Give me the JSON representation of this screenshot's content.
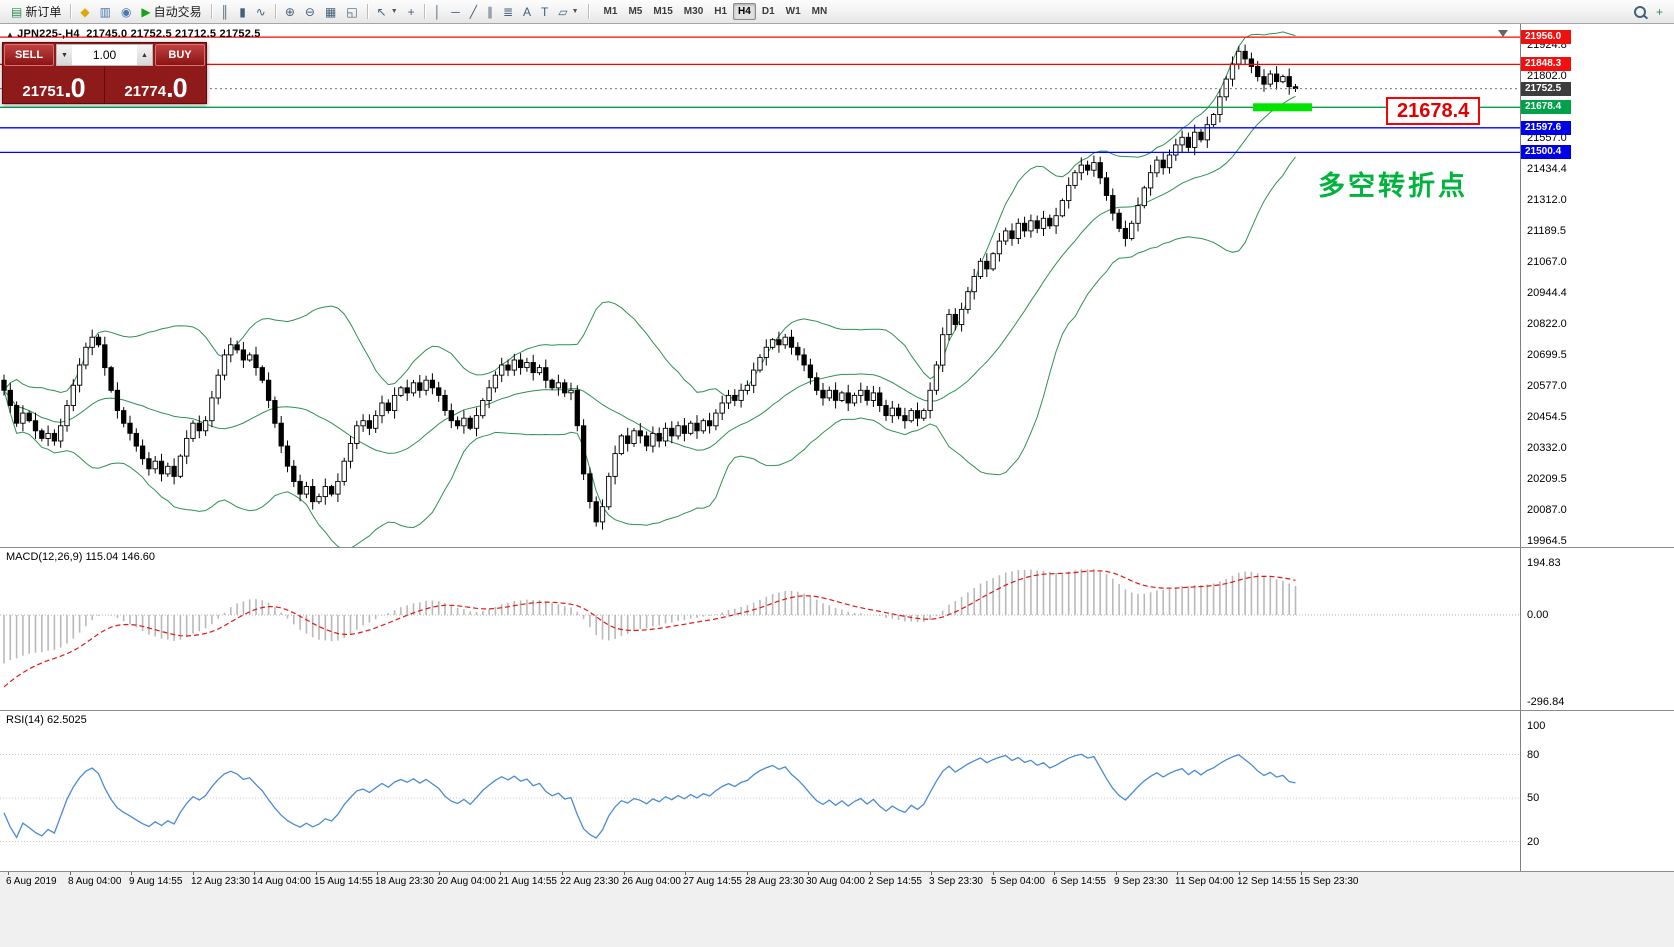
{
  "toolbar": {
    "items": [
      {
        "t": "btn",
        "name": "new-order-button",
        "glyph": "▤",
        "gc": "#2f8f4f",
        "label": "新订单"
      },
      {
        "t": "sep"
      },
      {
        "t": "ico",
        "name": "favorites-icon",
        "glyph": "◆",
        "gc": "#e0a700"
      },
      {
        "t": "ico",
        "name": "charts-window-icon",
        "glyph": "▥",
        "gc": "#4a78b0"
      },
      {
        "t": "ico",
        "name": "history-center-icon",
        "glyph": "◉",
        "gc": "#4a78b0"
      },
      {
        "t": "btn",
        "name": "auto-trading-button",
        "glyph": "▶",
        "gc": "#17a317",
        "label": "自动交易"
      },
      {
        "t": "sep"
      },
      {
        "t": "ico",
        "name": "bar-chart-icon",
        "glyph": "║"
      },
      {
        "t": "ico",
        "name": "candlestick-chart-icon",
        "glyph": "▮"
      },
      {
        "t": "ico",
        "name": "line-chart-icon",
        "glyph": "∿"
      },
      {
        "t": "sep"
      },
      {
        "t": "ico",
        "name": "zoom-in-icon",
        "glyph": "⊕"
      },
      {
        "t": "ico",
        "name": "zoom-out-icon",
        "glyph": "⊖"
      },
      {
        "t": "ico",
        "name": "grid-icon",
        "glyph": "▦"
      },
      {
        "t": "ico",
        "name": "tile-windows-icon",
        "glyph": "◱"
      },
      {
        "t": "sep"
      },
      {
        "t": "ico",
        "name": "cursor-icon",
        "glyph": "↖",
        "dd": true
      },
      {
        "t": "ico",
        "name": "crosshair-icon",
        "glyph": "+"
      },
      {
        "t": "sep"
      },
      {
        "t": "ico",
        "name": "vertical-line-icon",
        "glyph": "│"
      },
      {
        "t": "ico",
        "name": "horizontal-line-icon",
        "glyph": "─"
      },
      {
        "t": "ico",
        "name": "trendline-icon",
        "glyph": "╱"
      },
      {
        "t": "ico",
        "name": "equidistant-channel-icon",
        "glyph": "∥"
      },
      {
        "t": "ico",
        "name": "fibonacci-icon",
        "glyph": "≣"
      },
      {
        "t": "ico",
        "name": "text-icon",
        "glyph": "A"
      },
      {
        "t": "ico",
        "name": "text-label-icon",
        "glyph": "T"
      },
      {
        "t": "ico",
        "name": "shapes-icon",
        "glyph": "▱",
        "dd": true
      },
      {
        "t": "sep"
      },
      {
        "t": "tfs"
      },
      {
        "t": "spacer"
      },
      {
        "t": "search",
        "name": "search-button"
      },
      {
        "t": "ico",
        "name": "add-chart-icon",
        "glyph": "+",
        "gc": "#2f8f4f"
      }
    ],
    "timeframes": [
      {
        "label": "M1"
      },
      {
        "label": "M5"
      },
      {
        "label": "M15"
      },
      {
        "label": "M30"
      },
      {
        "label": "H1"
      },
      {
        "label": "H4",
        "active": true
      },
      {
        "label": "D1"
      },
      {
        "label": "W1"
      },
      {
        "label": "MN"
      }
    ]
  },
  "chart": {
    "symbol_period": "JPN225-,H4",
    "ohlc": "21745.0 21752.5 21712.5 21752.5"
  },
  "trade_panel": {
    "sell_label": "SELL",
    "buy_label": "BUY",
    "volume": "1.00",
    "sell_price": "21751",
    "sell_frac": ".0",
    "buy_price": "21774",
    "buy_frac": ".0"
  },
  "annotations": {
    "price_callout": "21678.4",
    "callout_color": "#e00000",
    "callout_border": "#ff0000",
    "turning_point": "多空转折点",
    "turning_point_color": "#00b33c"
  },
  "levels": {
    "lines": [
      {
        "price": 21956.0,
        "label": "21956.0",
        "color": "#ff0000",
        "tag": "#f01010",
        "width": 1.3
      },
      {
        "price": 21848.3,
        "label": "21848.3",
        "color": "#ff0000",
        "tag": "#f01010",
        "width": 1.3
      },
      {
        "price": 21752.5,
        "label": "21752.5",
        "color": "#777777",
        "tag": "#3d3d3d",
        "width": 1,
        "dash": "2 3"
      },
      {
        "price": 21678.4,
        "label": "21678.4",
        "color": "#00a14b",
        "tag": "#00a14b",
        "width": 1.3
      },
      {
        "price": 21597.6,
        "label": "21597.6",
        "color": "#0000ff",
        "tag": "#0000e8",
        "width": 1.3
      },
      {
        "price": 21500.4,
        "label": "21500.4",
        "color": "#0000ff",
        "tag": "#0000e8",
        "width": 1.3
      }
    ],
    "highlight_segment": {
      "price": 21678.4,
      "color": "#00e400"
    }
  },
  "macd": {
    "label": "MACD(12,26,9) 115.04 146.60",
    "scale": [
      "194.83",
      "0.00",
      "-296.84"
    ]
  },
  "rsi": {
    "label": "RSI(14) 62.5025",
    "scale": [
      100,
      80,
      50,
      20
    ],
    "levels": [
      80,
      50,
      20
    ]
  },
  "chart_data": {
    "type": "candlestick",
    "symbol": "JPN225-",
    "timeframe": "H4",
    "overlays": [
      "Bollinger Bands (20,2)"
    ],
    "band_color": "#2e9152",
    "last_ohlc": {
      "open": 21745.0,
      "high": 21752.5,
      "low": 21712.5,
      "close": 21752.5
    },
    "y_ticks": [
      "21924.8",
      "21802.0",
      "21557.0",
      "21434.4",
      "21312.0",
      "21189.5",
      "21067.0",
      "20944.4",
      "20822.0",
      "20699.5",
      "20577.0",
      "20454.5",
      "20332.0",
      "20209.5",
      "20087.0",
      "19964.5"
    ],
    "x_labels": [
      "6 Aug 2019",
      "8 Aug 04:00",
      "9 Aug 14:55",
      "12 Aug 23:30",
      "14 Aug 04:00",
      "15 Aug 14:55",
      "18 Aug 23:30",
      "20 Aug 04:00",
      "21 Aug 14:55",
      "22 Aug 23:30",
      "26 Aug 04:00",
      "27 Aug 14:55",
      "28 Aug 23:30",
      "30 Aug 04:00",
      "2 Sep 14:55",
      "3 Sep 23:30",
      "5 Sep 04:00",
      "6 Sep 14:55",
      "9 Sep 23:30",
      "11 Sep 04:00",
      "12 Sep 14:55",
      "15 Sep 23:30"
    ],
    "closes": [
      20560,
      20500,
      20430,
      20470,
      20440,
      20400,
      20370,
      20390,
      20360,
      20420,
      20500,
      20580,
      20660,
      20730,
      20770,
      20740,
      20650,
      20560,
      20480,
      20430,
      20390,
      20340,
      20290,
      20250,
      20280,
      20230,
      20260,
      20220,
      20300,
      20370,
      20430,
      20400,
      20440,
      20530,
      20620,
      20700,
      20740,
      20720,
      20680,
      20700,
      20650,
      20600,
      20520,
      20430,
      20340,
      20260,
      20200,
      20150,
      20180,
      20120,
      20140,
      20180,
      20150,
      20200,
      20280,
      20350,
      20420,
      20440,
      20410,
      20460,
      20510,
      20480,
      20540,
      20570,
      20550,
      20590,
      20560,
      20600,
      20570,
      20540,
      20480,
      20440,
      20420,
      20450,
      20410,
      20460,
      20520,
      20570,
      20620,
      20660,
      20640,
      20680,
      20650,
      20670,
      20630,
      20650,
      20600,
      20570,
      20590,
      20550,
      20560,
      20420,
      20230,
      20120,
      20040,
      20100,
      20220,
      20310,
      20380,
      20350,
      20400,
      20380,
      20340,
      20390,
      20360,
      20410,
      20380,
      20420,
      20390,
      20430,
      20400,
      20440,
      20420,
      20470,
      20510,
      20540,
      20520,
      20560,
      20580,
      20640,
      20690,
      20730,
      20760,
      20740,
      20770,
      20730,
      20700,
      20660,
      20610,
      20560,
      20530,
      20560,
      20520,
      20550,
      20510,
      20540,
      20560,
      20520,
      20550,
      20500,
      20460,
      20490,
      20460,
      20440,
      20480,
      20450,
      20480,
      20560,
      20660,
      20780,
      20860,
      20820,
      20880,
      20950,
      21010,
      21070,
      21040,
      21100,
      21150,
      21190,
      21160,
      21220,
      21190,
      21230,
      21200,
      21240,
      21210,
      21250,
      21310,
      21370,
      21420,
      21450,
      21430,
      21460,
      21400,
      21330,
      21260,
      21200,
      21160,
      21220,
      21290,
      21360,
      21420,
      21470,
      21440,
      21490,
      21530,
      21560,
      21520,
      21580,
      21550,
      21610,
      21650,
      21720,
      21790,
      21850,
      21900,
      21870,
      21840,
      21800,
      21770,
      21810,
      21780,
      21800,
      21760,
      21752.5
    ]
  }
}
